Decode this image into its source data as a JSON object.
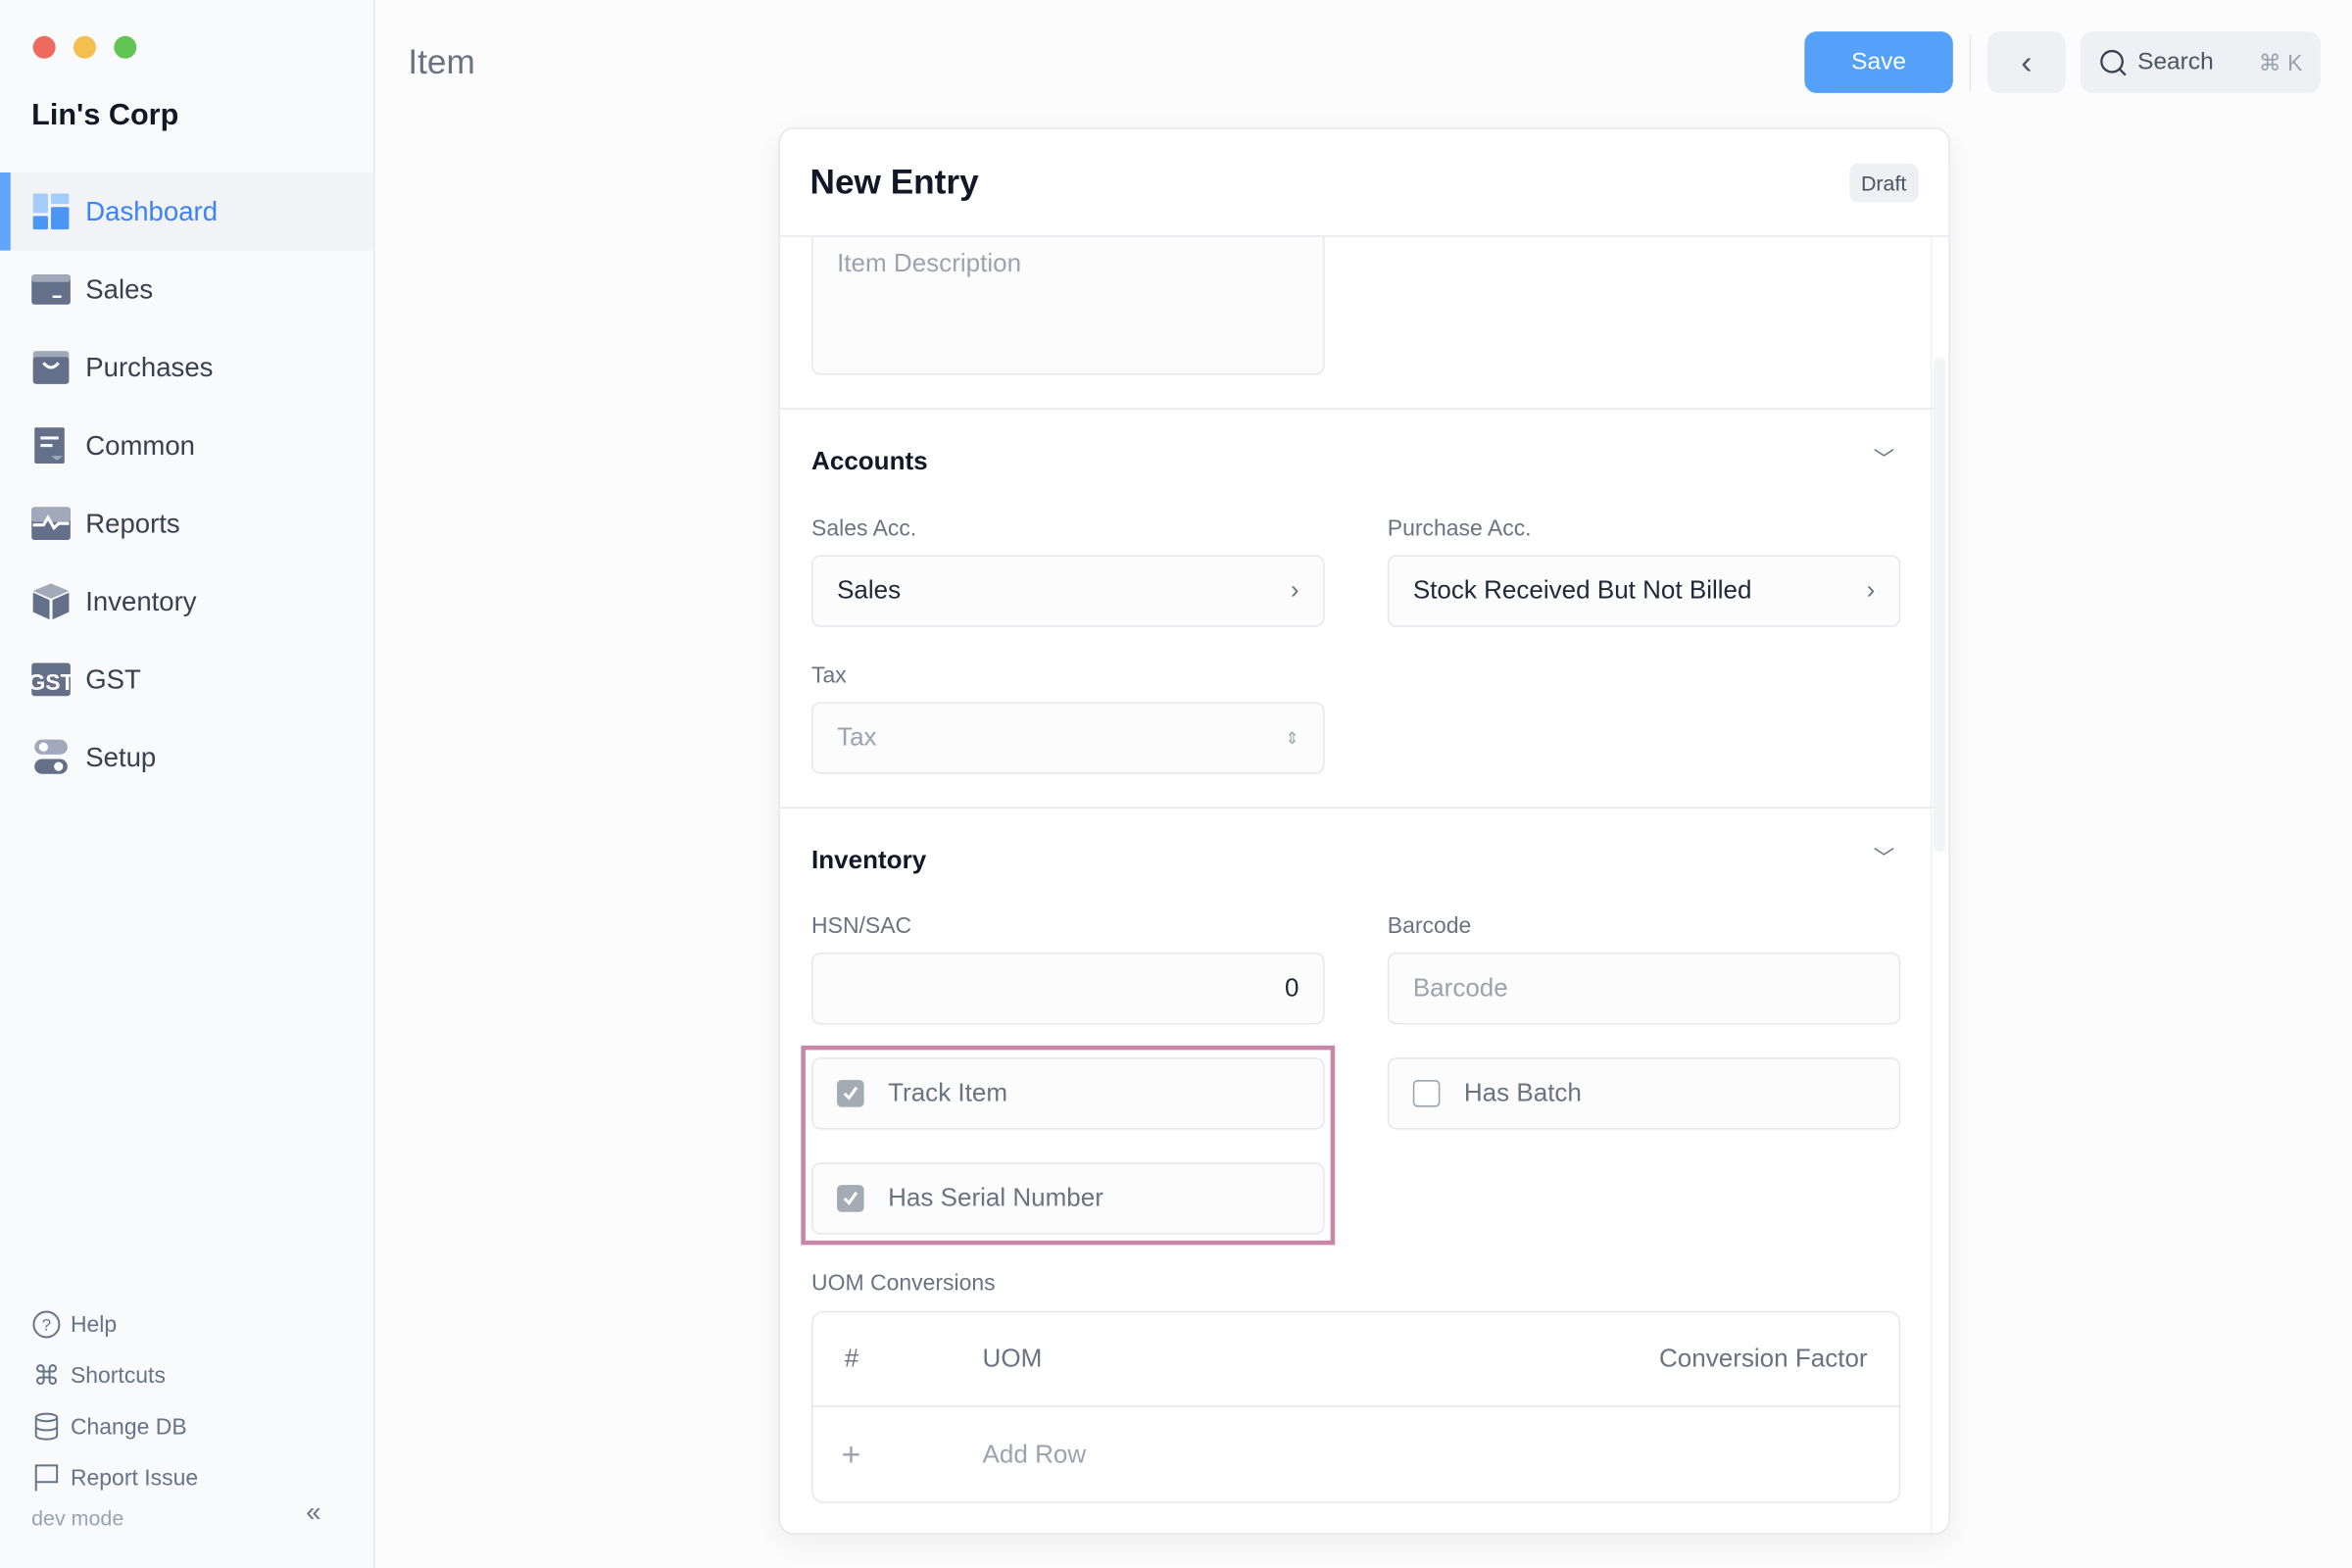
{
  "window": {
    "controls": {
      "close": "#ee6a5f",
      "minimize": "#f5bf4f",
      "maximize": "#61c554"
    }
  },
  "sidebar": {
    "company": "Lin's Corp",
    "items": [
      {
        "label": "Dashboard",
        "icon": "dashboard-icon",
        "active": true
      },
      {
        "label": "Sales",
        "icon": "sales-icon"
      },
      {
        "label": "Purchases",
        "icon": "purchases-icon"
      },
      {
        "label": "Common",
        "icon": "common-icon"
      },
      {
        "label": "Reports",
        "icon": "reports-icon"
      },
      {
        "label": "Inventory",
        "icon": "inventory-icon"
      },
      {
        "label": "GST",
        "icon": "gst-icon"
      },
      {
        "label": "Setup",
        "icon": "setup-icon"
      }
    ],
    "footer": [
      {
        "label": "Help",
        "icon": "help-icon"
      },
      {
        "label": "Shortcuts",
        "icon": "command-icon"
      },
      {
        "label": "Change DB",
        "icon": "database-icon"
      },
      {
        "label": "Report Issue",
        "icon": "flag-icon"
      }
    ],
    "dev_mode": "dev mode",
    "collapse": "«"
  },
  "header": {
    "title": "Item",
    "save_label": "Save",
    "back": "‹",
    "search_label": "Search",
    "search_shortcut": "⌘ K"
  },
  "form": {
    "title": "New Entry",
    "status": "Draft",
    "description_placeholder": "Item Description",
    "accounts": {
      "title": "Accounts",
      "sales_label": "Sales Acc.",
      "sales_value": "Sales",
      "purchase_label": "Purchase Acc.",
      "purchase_value": "Stock Received But Not Billed",
      "tax_label": "Tax",
      "tax_placeholder": "Tax"
    },
    "inventory": {
      "title": "Inventory",
      "hsn_label": "HSN/SAC",
      "hsn_value": "0",
      "barcode_label": "Barcode",
      "barcode_placeholder": "Barcode",
      "track_item": {
        "label": "Track Item",
        "checked": true
      },
      "has_batch": {
        "label": "Has Batch",
        "checked": false
      },
      "has_serial": {
        "label": "Has Serial Number",
        "checked": true
      }
    },
    "uom": {
      "label": "UOM Conversions",
      "columns": [
        "#",
        "UOM",
        "Conversion Factor"
      ],
      "add_icon": "+",
      "add_row": "Add Row"
    }
  },
  "colors": {
    "accent": "#55a0f8",
    "highlight": "#c986a8"
  }
}
